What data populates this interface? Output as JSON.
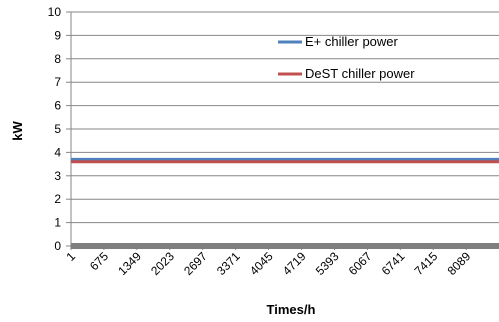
{
  "chart_data": {
    "type": "line",
    "title": "",
    "xlabel": "Times/h",
    "ylabel": "kW",
    "x_tick_labels": [
      "1",
      "675",
      "1349",
      "2023",
      "2697",
      "3371",
      "4045",
      "4719",
      "5393",
      "6067",
      "6741",
      "7415",
      "8089"
    ],
    "x_range": [
      1,
      8760
    ],
    "ylim": [
      0,
      10
    ],
    "y_ticks": [
      "0",
      "1",
      "2",
      "3",
      "4",
      "5",
      "6",
      "7",
      "8",
      "9",
      "10"
    ],
    "grid": true,
    "legend_position": "top-right",
    "series": [
      {
        "name": "E+ chiller power",
        "color": "#4f81bd",
        "x": [
          1,
          8760
        ],
        "y": [
          3.7,
          3.7
        ]
      },
      {
        "name": "DeST chiller power",
        "color": "#c0504d",
        "x": [
          1,
          8760
        ],
        "y": [
          3.6,
          3.6
        ]
      },
      {
        "name": "",
        "color": "#7f7f7f",
        "x": [
          1,
          8760
        ],
        "y": [
          0,
          0
        ]
      }
    ]
  }
}
